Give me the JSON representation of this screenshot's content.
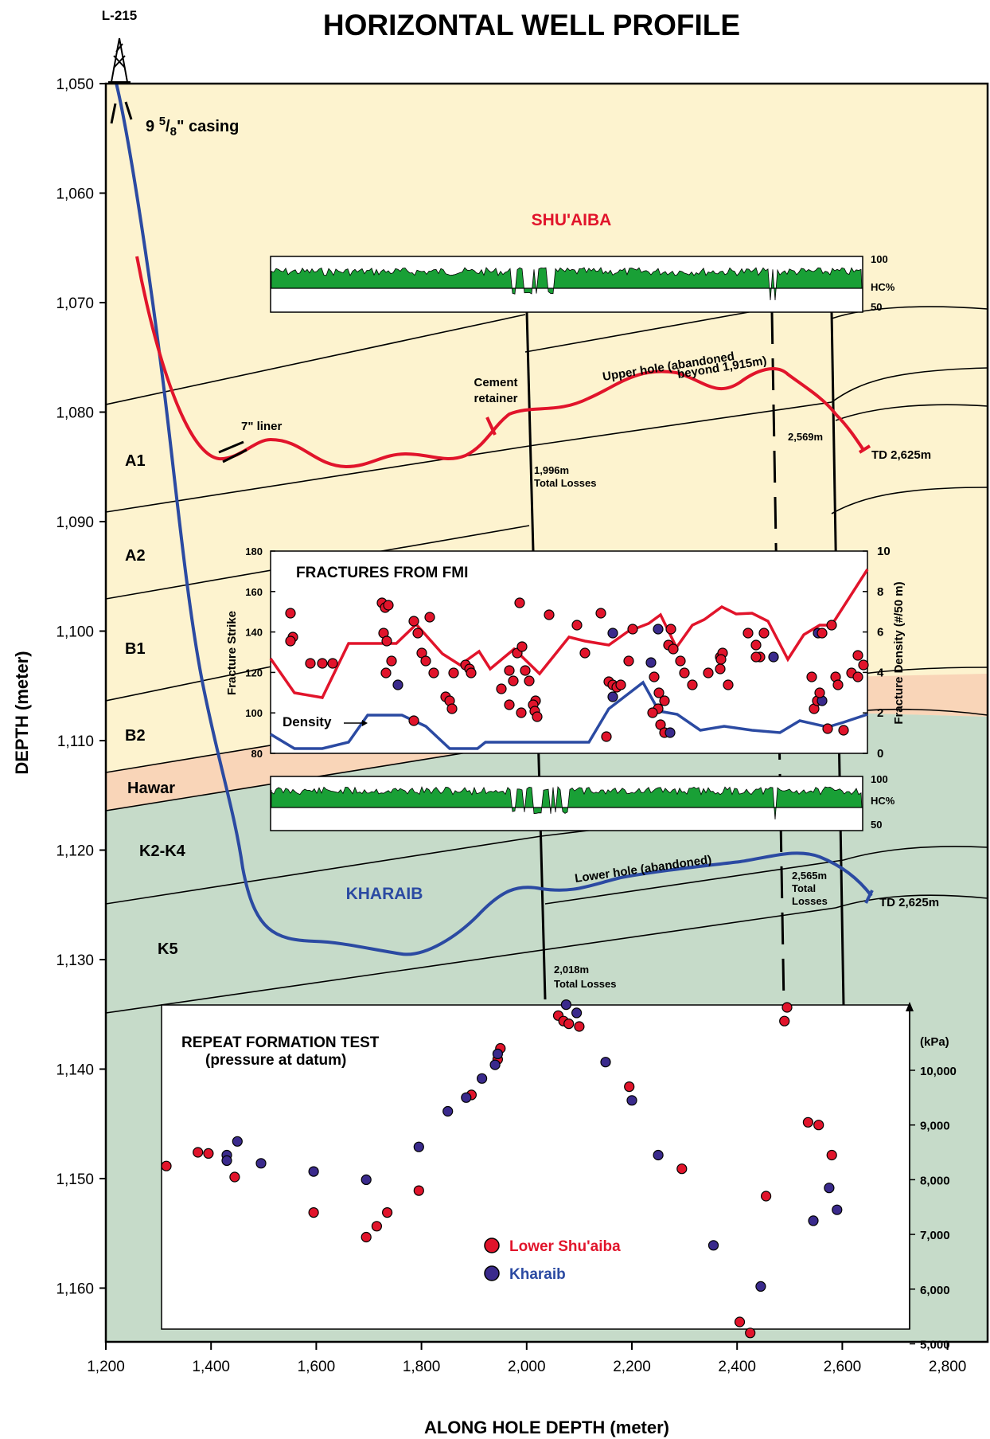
{
  "title": "HORIZONTAL WELL PROFILE",
  "well_name": "L-215",
  "y_axis": {
    "label": "DEPTH (meter)",
    "ticks": [
      "1,050",
      "1,060",
      "1,070",
      "1,080",
      "1,090",
      "1,100",
      "1,110",
      "1,120",
      "1,130",
      "1,140",
      "1,150",
      "1,160"
    ]
  },
  "x_axis": {
    "label": "ALONG HOLE DEPTH (meter)",
    "ticks": [
      "1,200",
      "1,400",
      "1,600",
      "1,800",
      "2,000",
      "2,200",
      "2,400",
      "2,600",
      "2,800"
    ]
  },
  "layers": {
    "a1": "A1",
    "a2": "A2",
    "b1": "B1",
    "b2": "B2",
    "hawar": "Hawar",
    "k2k4": "K2-K4",
    "k5": "K5"
  },
  "formations": {
    "shuaiba": "SHU'AIBA",
    "kharaib": "KHARAIB"
  },
  "colors": {
    "shuaiba_fill": "#fdf3cf",
    "hawar_fill": "#f9d5b8",
    "kharaib_fill": "#c6dbc9",
    "upper_hole": "#e1142b",
    "lower_hole": "#2b4aa2",
    "hc_log": "#19a036"
  },
  "annotations": {
    "casing_a": "9 ",
    "casing_num": "5",
    "casing_slash": "/",
    "casing_den": "8",
    "casing_b": "\" casing",
    "liner": "7\" liner",
    "cement_1": "Cement",
    "cement_2": "retainer",
    "upper_hole_1": "Upper hole (abandoned",
    "upper_hole_2": "beyond 1,915m)",
    "loss_1996_a": "1,996m",
    "loss_1996_b": "Total Losses",
    "md_2569": "2,569m",
    "td_upper": "TD 2,625m",
    "lower_hole": "Lower hole (abandoned)",
    "loss_2565_a": "2,565m",
    "loss_2565_b": "Total",
    "loss_2565_c": "Losses",
    "td_lower": "TD 2,625m",
    "loss_2018_a": "2,018m",
    "loss_2018_b": "Total Losses"
  },
  "hc_logs": {
    "label": "HC%",
    "top": "100",
    "bottom": "50"
  },
  "fractures_panel": {
    "title": "FRACTURES FROM FMI",
    "left_axis_label": "Fracture Strike",
    "right_axis_label": "Fracture Density (#/50 m)",
    "left_ticks": [
      "180",
      "160",
      "140",
      "120",
      "100",
      "80"
    ],
    "right_ticks": [
      "10",
      "8",
      "6",
      "4",
      "2",
      "0"
    ],
    "density_label": "Density"
  },
  "rft_panel": {
    "title_1": "REPEAT FORMATION TEST",
    "title_2": "(pressure at datum)",
    "unit": "(kPa)",
    "ticks": [
      "10,000",
      "9,000",
      "8,000",
      "7,000",
      "6,000",
      "5,000"
    ],
    "legend_shuaiba": "Lower Shu'aiba",
    "legend_kharaib": "Kharaib"
  },
  "chart_data": {
    "type": "scatter",
    "title": "REPEAT FORMATION TEST",
    "x_unit": "along hole depth (m)",
    "y_unit": "kPa",
    "ylim": [
      5000,
      11000
    ],
    "series": [
      {
        "name": "Lower Shu'aiba",
        "color": "#e1142b",
        "points": [
          [
            1315,
            8250
          ],
          [
            1375,
            8500
          ],
          [
            1395,
            8480
          ],
          [
            1445,
            8050
          ],
          [
            1595,
            7400
          ],
          [
            1695,
            6950
          ],
          [
            1715,
            7150
          ],
          [
            1735,
            7400
          ],
          [
            1795,
            7800
          ],
          [
            1895,
            9550
          ],
          [
            1945,
            10200
          ],
          [
            1950,
            10400
          ],
          [
            2060,
            11000
          ],
          [
            2070,
            10900
          ],
          [
            2080,
            10850
          ],
          [
            2100,
            10800
          ],
          [
            2195,
            9700
          ],
          [
            2295,
            8200
          ],
          [
            2405,
            5400
          ],
          [
            2425,
            5200
          ],
          [
            2455,
            7700
          ],
          [
            2490,
            10900
          ],
          [
            2495,
            11150
          ],
          [
            2535,
            9050
          ],
          [
            2555,
            9000
          ],
          [
            2580,
            8450
          ]
        ]
      },
      {
        "name": "Kharaib",
        "color": "#3a2a8c",
        "points": [
          [
            1430,
            8450
          ],
          [
            1430,
            8350
          ],
          [
            1450,
            8700
          ],
          [
            1495,
            8300
          ],
          [
            1595,
            8150
          ],
          [
            1695,
            8000
          ],
          [
            1795,
            8600
          ],
          [
            1850,
            9250
          ],
          [
            1885,
            9500
          ],
          [
            1915,
            9850
          ],
          [
            1940,
            10100
          ],
          [
            1945,
            10300
          ],
          [
            2075,
            11200
          ],
          [
            2095,
            11050
          ],
          [
            2150,
            10150
          ],
          [
            2200,
            9450
          ],
          [
            2250,
            8450
          ],
          [
            2355,
            6800
          ],
          [
            2445,
            6050
          ],
          [
            2545,
            7250
          ],
          [
            2575,
            7850
          ],
          [
            2590,
            7450
          ]
        ]
      }
    ]
  }
}
